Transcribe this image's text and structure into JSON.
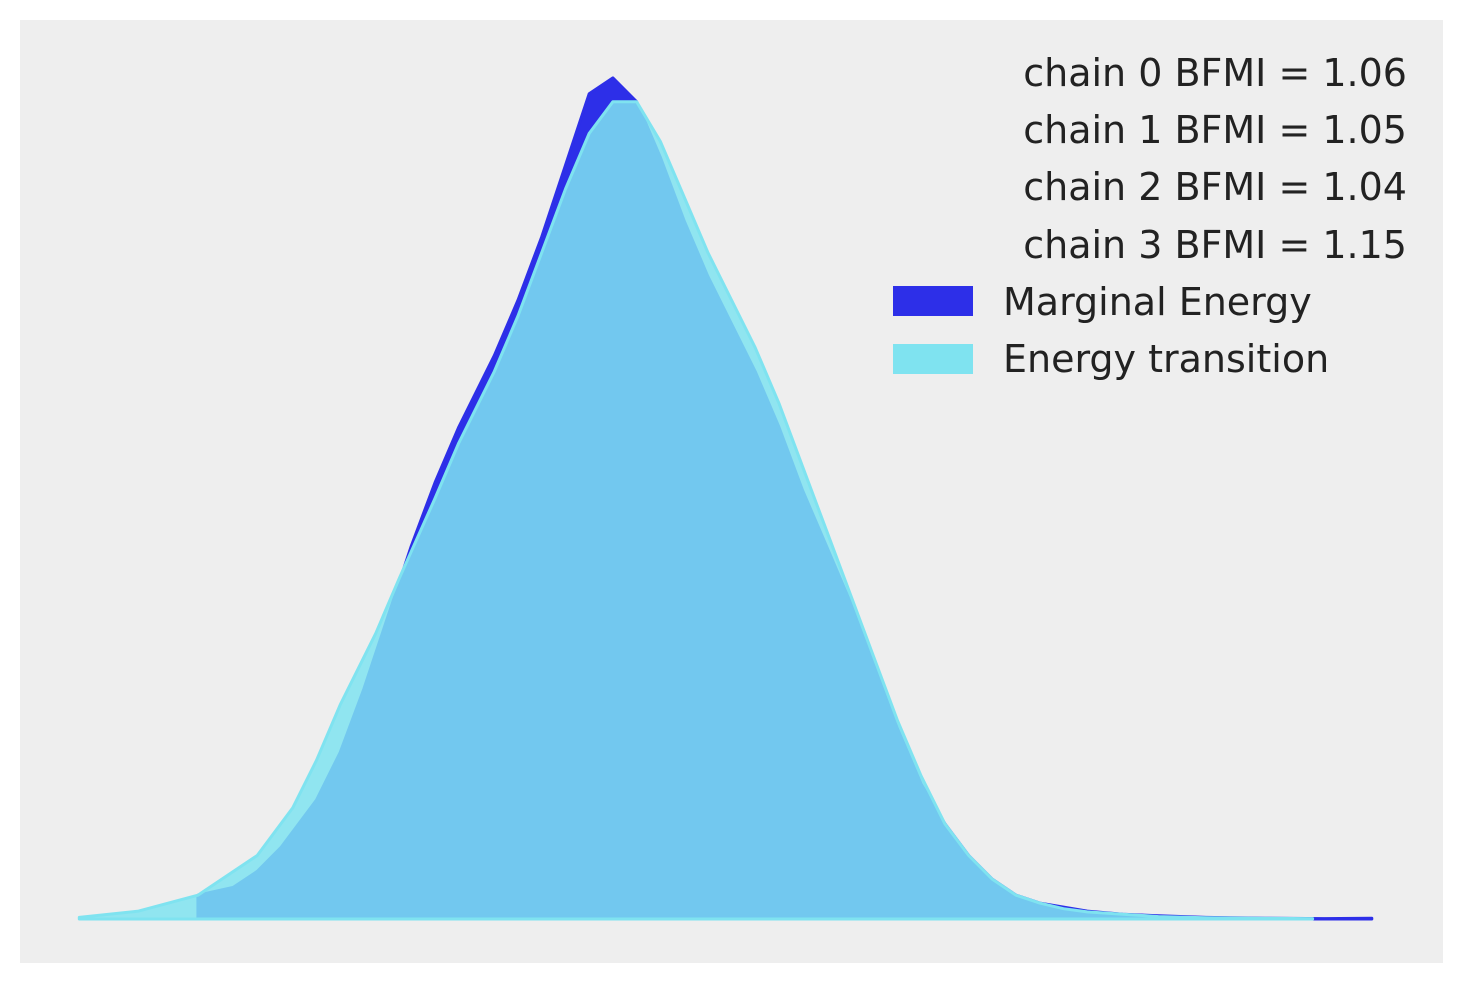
{
  "chart_data": {
    "type": "area",
    "title": "",
    "xlabel": "",
    "ylabel": "",
    "xlim": [
      -0.1,
      1.1
    ],
    "ylim": [
      0,
      1.08
    ],
    "grid": false,
    "legend_position": "top-right",
    "bfmi_labels": [
      "chain  0 BFMI = 1.06",
      "chain  1 BFMI = 1.05",
      "chain  2 BFMI = 1.04",
      "chain  3 BFMI = 1.15"
    ],
    "series": [
      {
        "name": "Marginal Energy",
        "color": "#2d2fe8",
        "x": [
          0.05,
          0.08,
          0.1,
          0.12,
          0.15,
          0.17,
          0.19,
          0.21,
          0.23,
          0.25,
          0.27,
          0.3,
          0.32,
          0.34,
          0.36,
          0.38,
          0.4,
          0.42,
          0.44,
          0.46,
          0.48,
          0.5,
          0.52,
          0.54,
          0.56,
          0.58,
          0.6,
          0.62,
          0.64,
          0.66,
          0.68,
          0.7,
          0.72,
          0.74,
          0.76,
          0.78,
          0.8,
          0.83,
          0.86,
          0.9,
          0.95,
          1.0,
          1.04
        ],
        "y": [
          0.03,
          0.04,
          0.06,
          0.09,
          0.15,
          0.21,
          0.29,
          0.38,
          0.47,
          0.55,
          0.62,
          0.71,
          0.78,
          0.86,
          0.95,
          1.04,
          1.06,
          1.03,
          0.96,
          0.88,
          0.81,
          0.75,
          0.69,
          0.62,
          0.54,
          0.47,
          0.4,
          0.32,
          0.24,
          0.17,
          0.12,
          0.08,
          0.05,
          0.03,
          0.02,
          0.015,
          0.01,
          0.006,
          0.004,
          0.002,
          0.001,
          0.0005,
          0.001
        ]
      },
      {
        "name": "Energy transition",
        "color": "#7fe3f0",
        "x": [
          -0.05,
          0.0,
          0.05,
          0.1,
          0.13,
          0.15,
          0.17,
          0.2,
          0.22,
          0.25,
          0.27,
          0.3,
          0.32,
          0.34,
          0.36,
          0.38,
          0.4,
          0.42,
          0.44,
          0.46,
          0.48,
          0.5,
          0.52,
          0.54,
          0.56,
          0.58,
          0.6,
          0.62,
          0.64,
          0.66,
          0.68,
          0.7,
          0.72,
          0.74,
          0.76,
          0.78,
          0.8,
          0.83,
          0.86,
          0.9,
          0.95,
          0.99
        ],
        "y": [
          0.002,
          0.01,
          0.03,
          0.08,
          0.14,
          0.2,
          0.27,
          0.36,
          0.43,
          0.53,
          0.6,
          0.69,
          0.76,
          0.84,
          0.92,
          0.99,
          1.03,
          1.03,
          0.98,
          0.91,
          0.84,
          0.78,
          0.72,
          0.65,
          0.57,
          0.49,
          0.41,
          0.33,
          0.25,
          0.18,
          0.12,
          0.08,
          0.05,
          0.03,
          0.02,
          0.013,
          0.009,
          0.006,
          0.003,
          0.0015,
          0.0008,
          0.0005
        ]
      }
    ]
  }
}
